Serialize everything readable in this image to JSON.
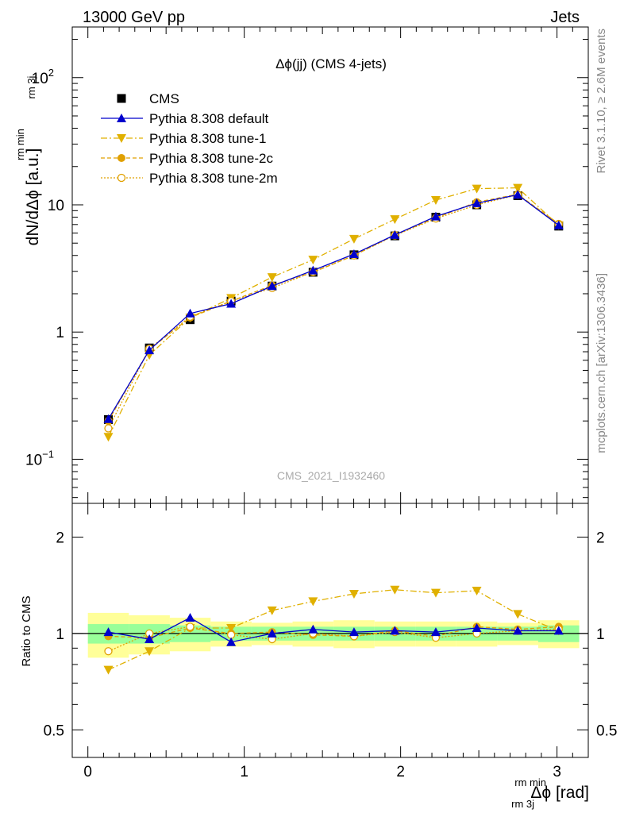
{
  "header": {
    "left": "13000 GeV pp",
    "right": "Jets"
  },
  "side_text": {
    "top": "Rivet 3.1.10, ≥ 2.6M events",
    "bottom": "mcplots.cern.ch [arXiv:1306.3436]"
  },
  "colors": {
    "cms": "#000000",
    "default": "#0000cc",
    "tunes": "#e0a000",
    "tune1": "#e0b000",
    "band_outer": "#ffff99",
    "band_inner": "#99ff99"
  },
  "chart_data": [
    {
      "type": "scatter",
      "title": "Δϕ(jj) (CMS 4-jets)",
      "watermark": "CMS_2021_I1932460",
      "ylabel": "dN/dΔϕ [a.u.]",
      "ylabel_sup": "rm min",
      "ylabel_sub": "rm 3j",
      "yscale": "log",
      "ylim": [
        0.045,
        250
      ],
      "xlim": [
        -0.1,
        3.2
      ],
      "yticks": [
        {
          "value": 0.1,
          "label": "10",
          "sup": "−1"
        },
        {
          "value": 1,
          "label": "1",
          "sup": ""
        },
        {
          "value": 10,
          "label": "10",
          "sup": ""
        },
        {
          "value": 100,
          "label": "10",
          "sup": "2"
        }
      ],
      "x": [
        0.131,
        0.393,
        0.654,
        0.916,
        1.178,
        1.44,
        1.702,
        1.963,
        2.225,
        2.487,
        2.749,
        3.011
      ],
      "series": [
        {
          "name": "CMS",
          "values": [
            0.205,
            0.75,
            1.25,
            1.75,
            2.3,
            2.95,
            4.05,
            5.7,
            8.0,
            10.0,
            11.8,
            6.8
          ]
        },
        {
          "name": "Pythia 8.308 default",
          "values": [
            0.207,
            0.72,
            1.4,
            1.67,
            2.3,
            3.05,
            4.1,
            5.8,
            8.1,
            10.3,
            12.0,
            6.9
          ]
        },
        {
          "name": "Pythia 8.308 tune-1",
          "values": [
            0.15,
            0.66,
            1.3,
            1.85,
            2.7,
            3.7,
            5.4,
            7.7,
            10.9,
            13.4,
            13.6,
            6.9
          ]
        },
        {
          "name": "Pythia 8.308 tune-2c",
          "values": [
            0.2,
            0.73,
            1.3,
            1.75,
            2.33,
            2.95,
            4.0,
            5.8,
            7.9,
            10.5,
            12.1,
            7.1
          ]
        },
        {
          "name": "Pythia 8.308 tune-2m",
          "values": [
            0.175,
            0.74,
            1.32,
            1.75,
            2.22,
            2.97,
            4.0,
            5.75,
            7.8,
            10.0,
            12.0,
            7.0
          ]
        }
      ],
      "legend_position": "top-left"
    },
    {
      "type": "scatter",
      "ylabel": "Ratio to CMS",
      "xlabel": "Δϕ [rad]",
      "xlabel_sup": "rm min",
      "xlabel_sub": "rm 3j",
      "ylim": [
        0.41,
        2.55
      ],
      "yscale": "log",
      "yticks": [
        {
          "value": 0.5,
          "label": "0.5"
        },
        {
          "value": 1,
          "label": "1"
        },
        {
          "value": 2,
          "label": "2"
        }
      ],
      "xticks": [
        {
          "value": 0,
          "label": "0"
        },
        {
          "value": 1,
          "label": "1"
        },
        {
          "value": 2,
          "label": "2"
        },
        {
          "value": 3,
          "label": "3"
        }
      ],
      "x": [
        0.131,
        0.393,
        0.654,
        0.916,
        1.178,
        1.44,
        1.702,
        1.963,
        2.225,
        2.487,
        2.749,
        3.011
      ],
      "bin_edges": [
        0.0,
        0.262,
        0.524,
        0.785,
        1.047,
        1.309,
        1.571,
        1.833,
        2.094,
        2.356,
        2.618,
        2.88,
        3.142
      ],
      "band_outer": [
        0.16,
        0.14,
        0.12,
        0.09,
        0.08,
        0.09,
        0.1,
        0.09,
        0.09,
        0.09,
        0.08,
        0.1
      ],
      "band_inner": [
        0.07,
        0.07,
        0.06,
        0.05,
        0.05,
        0.05,
        0.05,
        0.05,
        0.05,
        0.05,
        0.05,
        0.06
      ],
      "series": [
        {
          "name": "Pythia 8.308 default",
          "values": [
            1.01,
            0.96,
            1.12,
            0.94,
            1.0,
            1.03,
            1.01,
            1.02,
            1.01,
            1.04,
            1.02,
            1.02
          ]
        },
        {
          "name": "Pythia 8.308 tune-1",
          "values": [
            0.77,
            0.88,
            1.04,
            1.04,
            1.18,
            1.26,
            1.33,
            1.37,
            1.34,
            1.36,
            1.15,
            1.02
          ]
        },
        {
          "name": "Pythia 8.308 tune-2c",
          "values": [
            0.98,
            0.97,
            1.04,
            1.0,
            1.01,
            0.99,
            0.98,
            1.02,
            0.98,
            1.05,
            1.03,
            1.05
          ]
        },
        {
          "name": "Pythia 8.308 tune-2m",
          "values": [
            0.88,
            1.0,
            1.05,
            0.99,
            0.96,
            1.0,
            0.98,
            1.01,
            0.97,
            1.0,
            1.02,
            1.03
          ]
        }
      ]
    }
  ]
}
